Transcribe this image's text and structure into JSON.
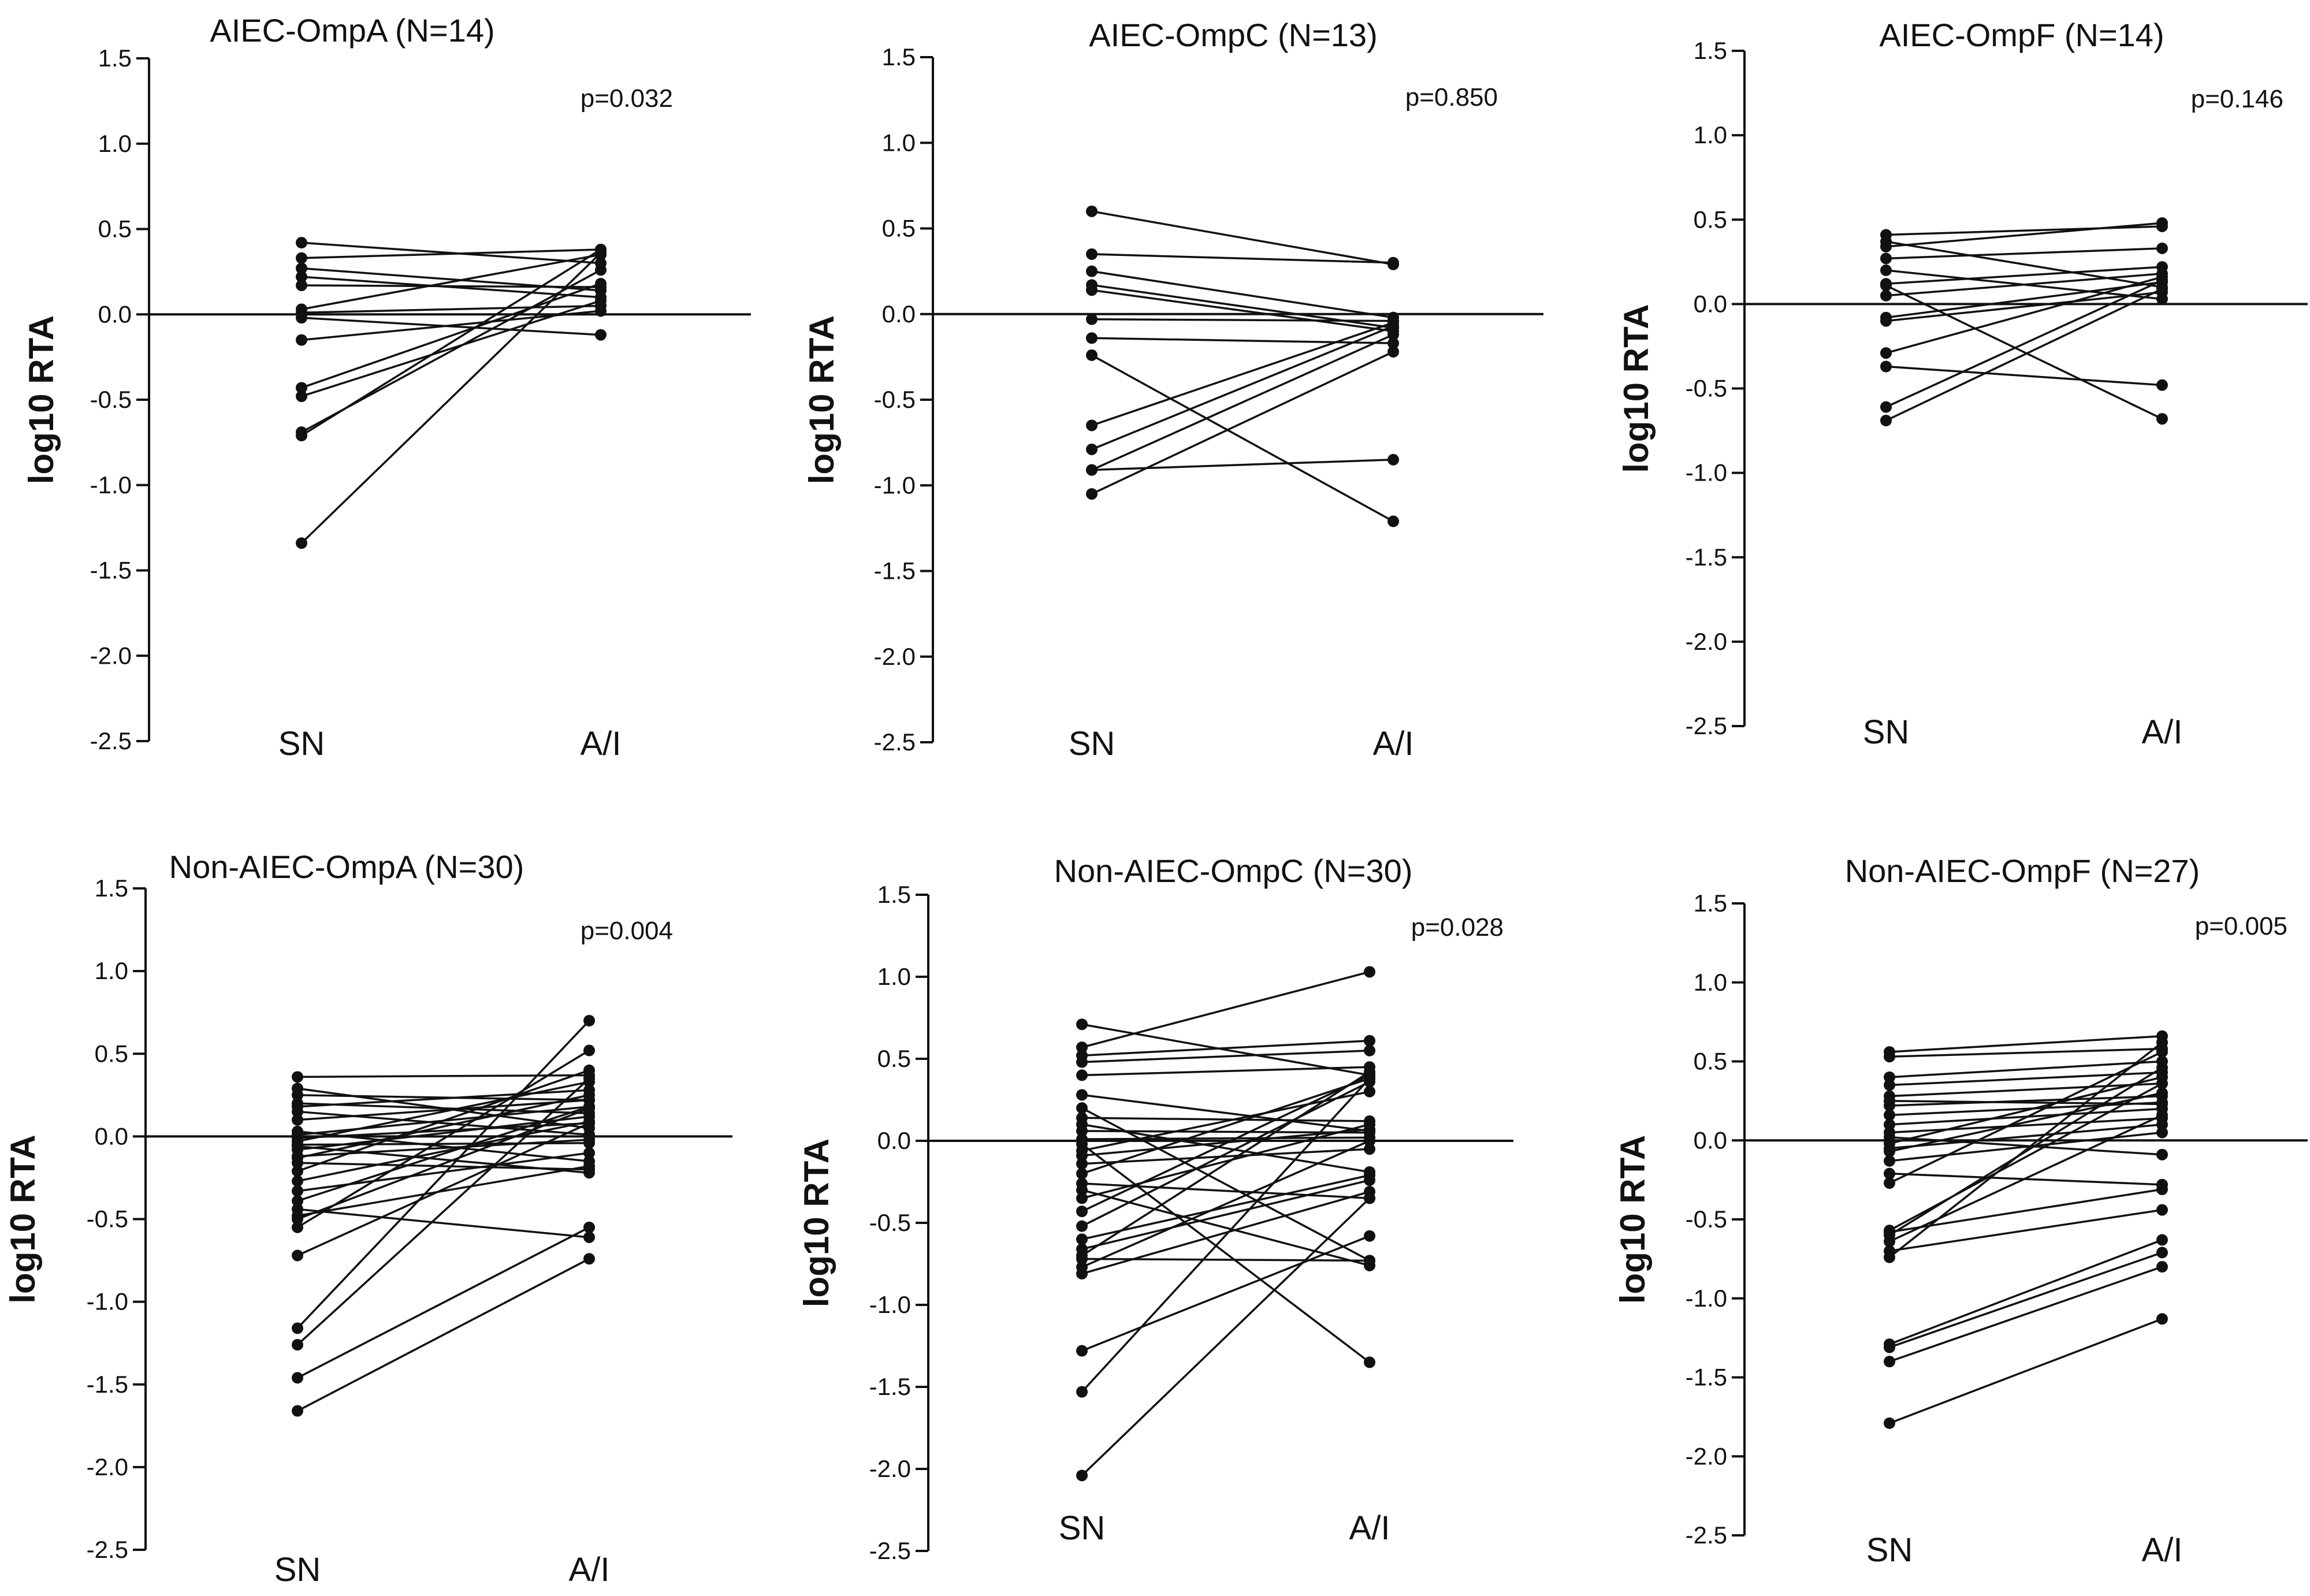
{
  "chart_data": [
    {
      "type": "line",
      "title": "AIEC-OmpA (N=14)",
      "p_value": "p=0.032",
      "ylabel": "log10 RTA",
      "categories": [
        "SN",
        "A/I"
      ],
      "ylim": [
        -2.5,
        1.5
      ],
      "yticks": [
        "1.5",
        "1.0",
        "0.5",
        "0.0",
        "-0.5",
        "-1.0",
        "-1.5",
        "-2.0",
        "-2.5"
      ],
      "pairs": [
        [
          0.42,
          0.3
        ],
        [
          0.33,
          0.38
        ],
        [
          0.27,
          0.14
        ],
        [
          0.17,
          0.16
        ],
        [
          0.03,
          0.35
        ],
        [
          0.01,
          0.05
        ],
        [
          -0.15,
          0.02
        ],
        [
          -0.43,
          0.18
        ],
        [
          -0.48,
          0.08
        ],
        [
          -0.69,
          0.26
        ],
        [
          -0.71,
          0.38
        ],
        [
          -1.34,
          0.36
        ],
        [
          0.22,
          0.1
        ],
        [
          -0.02,
          -0.12
        ]
      ]
    },
    {
      "type": "line",
      "title": "AIEC-OmpC (N=13)",
      "p_value": "p=0.850",
      "ylabel": "log10 RTA",
      "categories": [
        "SN",
        "A/I"
      ],
      "ylim": [
        -2.5,
        1.5
      ],
      "yticks": [
        "1.5",
        "1.0",
        "0.5",
        "0.0",
        "-0.5",
        "-1.0",
        "-1.5",
        "-2.0",
        "-2.5"
      ],
      "pairs": [
        [
          0.6,
          0.29
        ],
        [
          0.35,
          0.3
        ],
        [
          0.25,
          -0.02
        ],
        [
          0.17,
          -0.08
        ],
        [
          0.14,
          -0.1
        ],
        [
          -0.14,
          -0.17
        ],
        [
          -0.24,
          -1.21
        ],
        [
          -0.65,
          -0.05
        ],
        [
          -0.79,
          -0.07
        ],
        [
          -0.91,
          -0.85
        ],
        [
          -0.91,
          -0.12
        ],
        [
          -1.05,
          -0.22
        ],
        [
          -0.03,
          -0.04
        ]
      ]
    },
    {
      "type": "line",
      "title": "AIEC-OmpF (N=14)",
      "p_value": "p=0.146",
      "ylabel": "log10 RTA",
      "categories": [
        "SN",
        "A/I"
      ],
      "ylim": [
        -2.5,
        1.5
      ],
      "yticks": [
        "1.5",
        "1.0",
        "0.5",
        "0.0",
        "-0.5",
        "-1.0",
        "-1.5",
        "-2.0",
        "-2.5"
      ],
      "pairs": [
        [
          0.41,
          0.46
        ],
        [
          0.37,
          0.1
        ],
        [
          0.34,
          0.48
        ],
        [
          0.27,
          0.33
        ],
        [
          0.12,
          0.22
        ],
        [
          0.11,
          -0.68
        ],
        [
          -0.08,
          0.13
        ],
        [
          -0.29,
          0.16
        ],
        [
          -0.37,
          -0.48
        ],
        [
          -0.61,
          0.14
        ],
        [
          -0.69,
          0.09
        ],
        [
          0.2,
          0.03
        ],
        [
          0.05,
          0.18
        ],
        [
          -0.1,
          0.07
        ]
      ]
    },
    {
      "type": "line",
      "title": "Non-AIEC-OmpA (N=30)",
      "p_value": "p=0.004",
      "ylabel": "log10 RTA",
      "categories": [
        "SN",
        "A/I"
      ],
      "ylim": [
        -2.5,
        1.5
      ],
      "yticks": [
        "1.5",
        "1.0",
        "0.5",
        "0.0",
        "-0.5",
        "-1.0",
        "-1.5",
        "-2.0",
        "-2.5"
      ],
      "pairs": [
        [
          0.36,
          0.37
        ],
        [
          0.29,
          0.05
        ],
        [
          0.25,
          0.22
        ],
        [
          0.2,
          0.14
        ],
        [
          0.18,
          0.28
        ],
        [
          0.1,
          0.22
        ],
        [
          0.03,
          -0.15
        ],
        [
          0.01,
          0.18
        ],
        [
          -0.01,
          0.08
        ],
        [
          -0.03,
          0.33
        ],
        [
          -0.05,
          -0.04
        ],
        [
          -0.08,
          0.12
        ],
        [
          -0.12,
          -0.02
        ],
        [
          -0.16,
          -0.2
        ],
        [
          -0.21,
          0.4
        ],
        [
          -0.27,
          0.09
        ],
        [
          -0.33,
          -0.1
        ],
        [
          -0.39,
          0.18
        ],
        [
          -0.44,
          -0.61
        ],
        [
          -0.48,
          -0.18
        ],
        [
          -0.5,
          0.17
        ],
        [
          -0.55,
          0.52
        ],
        [
          -0.72,
          0.08
        ],
        [
          -1.16,
          0.7
        ],
        [
          -1.26,
          0.35
        ],
        [
          -1.46,
          -0.55
        ],
        [
          -1.66,
          -0.74
        ],
        [
          0.15,
          0.01
        ],
        [
          -0.06,
          -0.22
        ],
        [
          -0.13,
          0.25
        ]
      ]
    },
    {
      "type": "line",
      "title": "Non-AIEC-OmpC (N=30)",
      "p_value": "p=0.028",
      "ylabel": "log10 RTA",
      "categories": [
        "SN",
        "A/I"
      ],
      "ylim": [
        -2.5,
        1.5
      ],
      "yticks": [
        "1.5",
        "1.0",
        "0.5",
        "0.0",
        "-0.5",
        "-1.0",
        "-1.5",
        "-2.0",
        "-2.5"
      ],
      "pairs": [
        [
          0.71,
          0.4
        ],
        [
          0.57,
          1.03
        ],
        [
          0.52,
          0.61
        ],
        [
          0.48,
          0.55
        ],
        [
          0.4,
          0.45
        ],
        [
          0.2,
          -0.73
        ],
        [
          0.14,
          0.12
        ],
        [
          0.1,
          -0.19
        ],
        [
          0.06,
          0.05
        ],
        [
          0.01,
          0.02
        ],
        [
          -0.02,
          -1.35
        ],
        [
          -0.09,
          0.07
        ],
        [
          -0.14,
          -0.05
        ],
        [
          -0.2,
          0.38
        ],
        [
          -0.26,
          -0.35
        ],
        [
          -0.3,
          -0.76
        ],
        [
          -0.43,
          0.4
        ],
        [
          -0.52,
          0.36
        ],
        [
          -0.66,
          -0.24
        ],
        [
          -0.7,
          0.42
        ],
        [
          -0.72,
          -0.73
        ],
        [
          -0.77,
          0.0
        ],
        [
          -0.81,
          -0.31
        ],
        [
          -1.28,
          -0.58
        ],
        [
          -1.53,
          0.38
        ],
        [
          -2.04,
          -0.35
        ],
        [
          0.28,
          0.06
        ],
        [
          -0.06,
          0.3
        ],
        [
          -0.35,
          0.1
        ],
        [
          -0.6,
          -0.21
        ]
      ]
    },
    {
      "type": "line",
      "title": "Non-AIEC-OmpF (N=27)",
      "p_value": "p=0.005",
      "ylabel": "log10 RTA",
      "categories": [
        "SN",
        "A/I"
      ],
      "ylim": [
        -2.5,
        1.5
      ],
      "yticks": [
        "1.5",
        "1.0",
        "0.5",
        "0.0",
        "-0.5",
        "-1.0",
        "-1.5",
        "-2.0",
        "-2.5"
      ],
      "pairs": [
        [
          0.56,
          0.66
        ],
        [
          0.53,
          0.58
        ],
        [
          0.4,
          0.5
        ],
        [
          0.35,
          0.43
        ],
        [
          0.28,
          0.36
        ],
        [
          0.22,
          0.28
        ],
        [
          0.16,
          0.24
        ],
        [
          0.1,
          0.2
        ],
        [
          0.05,
          0.14
        ],
        [
          0.02,
          -0.09
        ],
        [
          -0.02,
          0.4
        ],
        [
          -0.07,
          0.3
        ],
        [
          -0.13,
          0.05
        ],
        [
          -0.21,
          -0.28
        ],
        [
          -0.57,
          0.36
        ],
        [
          -0.58,
          -0.31
        ],
        [
          -0.6,
          0.46
        ],
        [
          -0.64,
          0.16
        ],
        [
          -0.7,
          -0.44
        ],
        [
          -0.74,
          0.62
        ],
        [
          -1.29,
          -0.63
        ],
        [
          -1.31,
          -0.71
        ],
        [
          -1.4,
          -0.8
        ],
        [
          -1.79,
          -1.13
        ],
        [
          0.25,
          0.23
        ],
        [
          -0.05,
          0.1
        ],
        [
          -0.27,
          0.56
        ]
      ]
    }
  ]
}
